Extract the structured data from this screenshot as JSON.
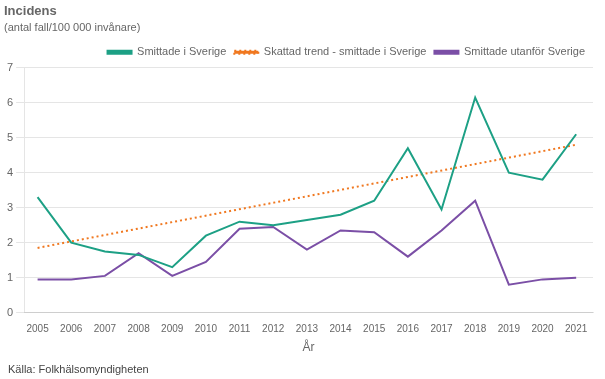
{
  "chart_data": {
    "type": "line",
    "title": "Incidens",
    "subtitle": "(antal fall/100 000 invånare)",
    "x_label": "År",
    "annotations": [
      "Källa: Folkhälsomyndigheten"
    ],
    "x": [
      2005,
      2006,
      2007,
      2008,
      2009,
      2010,
      2011,
      2012,
      2013,
      2014,
      2015,
      2016,
      2017,
      2018,
      2019,
      2020,
      2021
    ],
    "series": [
      {
        "name": "Smittade i Sverige",
        "color": "#1da085",
        "line_style": "solid",
        "values": [
          3.3,
          2.0,
          1.75,
          1.65,
          1.3,
          2.2,
          2.6,
          2.5,
          2.65,
          2.8,
          3.2,
          4.7,
          2.95,
          6.15,
          4.0,
          3.8,
          5.1
        ]
      },
      {
        "name": "Skattad trend - smittade i Sverige",
        "color": "#f07820",
        "line_style": "dotted",
        "x": [
          2005,
          2021
        ],
        "values": [
          1.85,
          4.8
        ]
      },
      {
        "name": "Smittade utanför Sverige",
        "color": "#7b4fa6",
        "line_style": "solid",
        "values": [
          0.95,
          0.95,
          1.05,
          1.7,
          1.05,
          1.45,
          2.4,
          2.45,
          1.8,
          2.35,
          2.3,
          1.6,
          2.35,
          3.2,
          0.8,
          0.95,
          1.0
        ]
      }
    ],
    "xlim": [
      2004.6,
      2021.5
    ],
    "xticks": [
      2005,
      2006,
      2007,
      2008,
      2009,
      2010,
      2011,
      2012,
      2013,
      2014,
      2015,
      2016,
      2017,
      2018,
      2019,
      2020,
      2021
    ],
    "ylim": [
      0,
      7
    ],
    "yticks": [
      0,
      1,
      2,
      3,
      4,
      5,
      6,
      7
    ],
    "grid": "y",
    "legend": "top right"
  }
}
